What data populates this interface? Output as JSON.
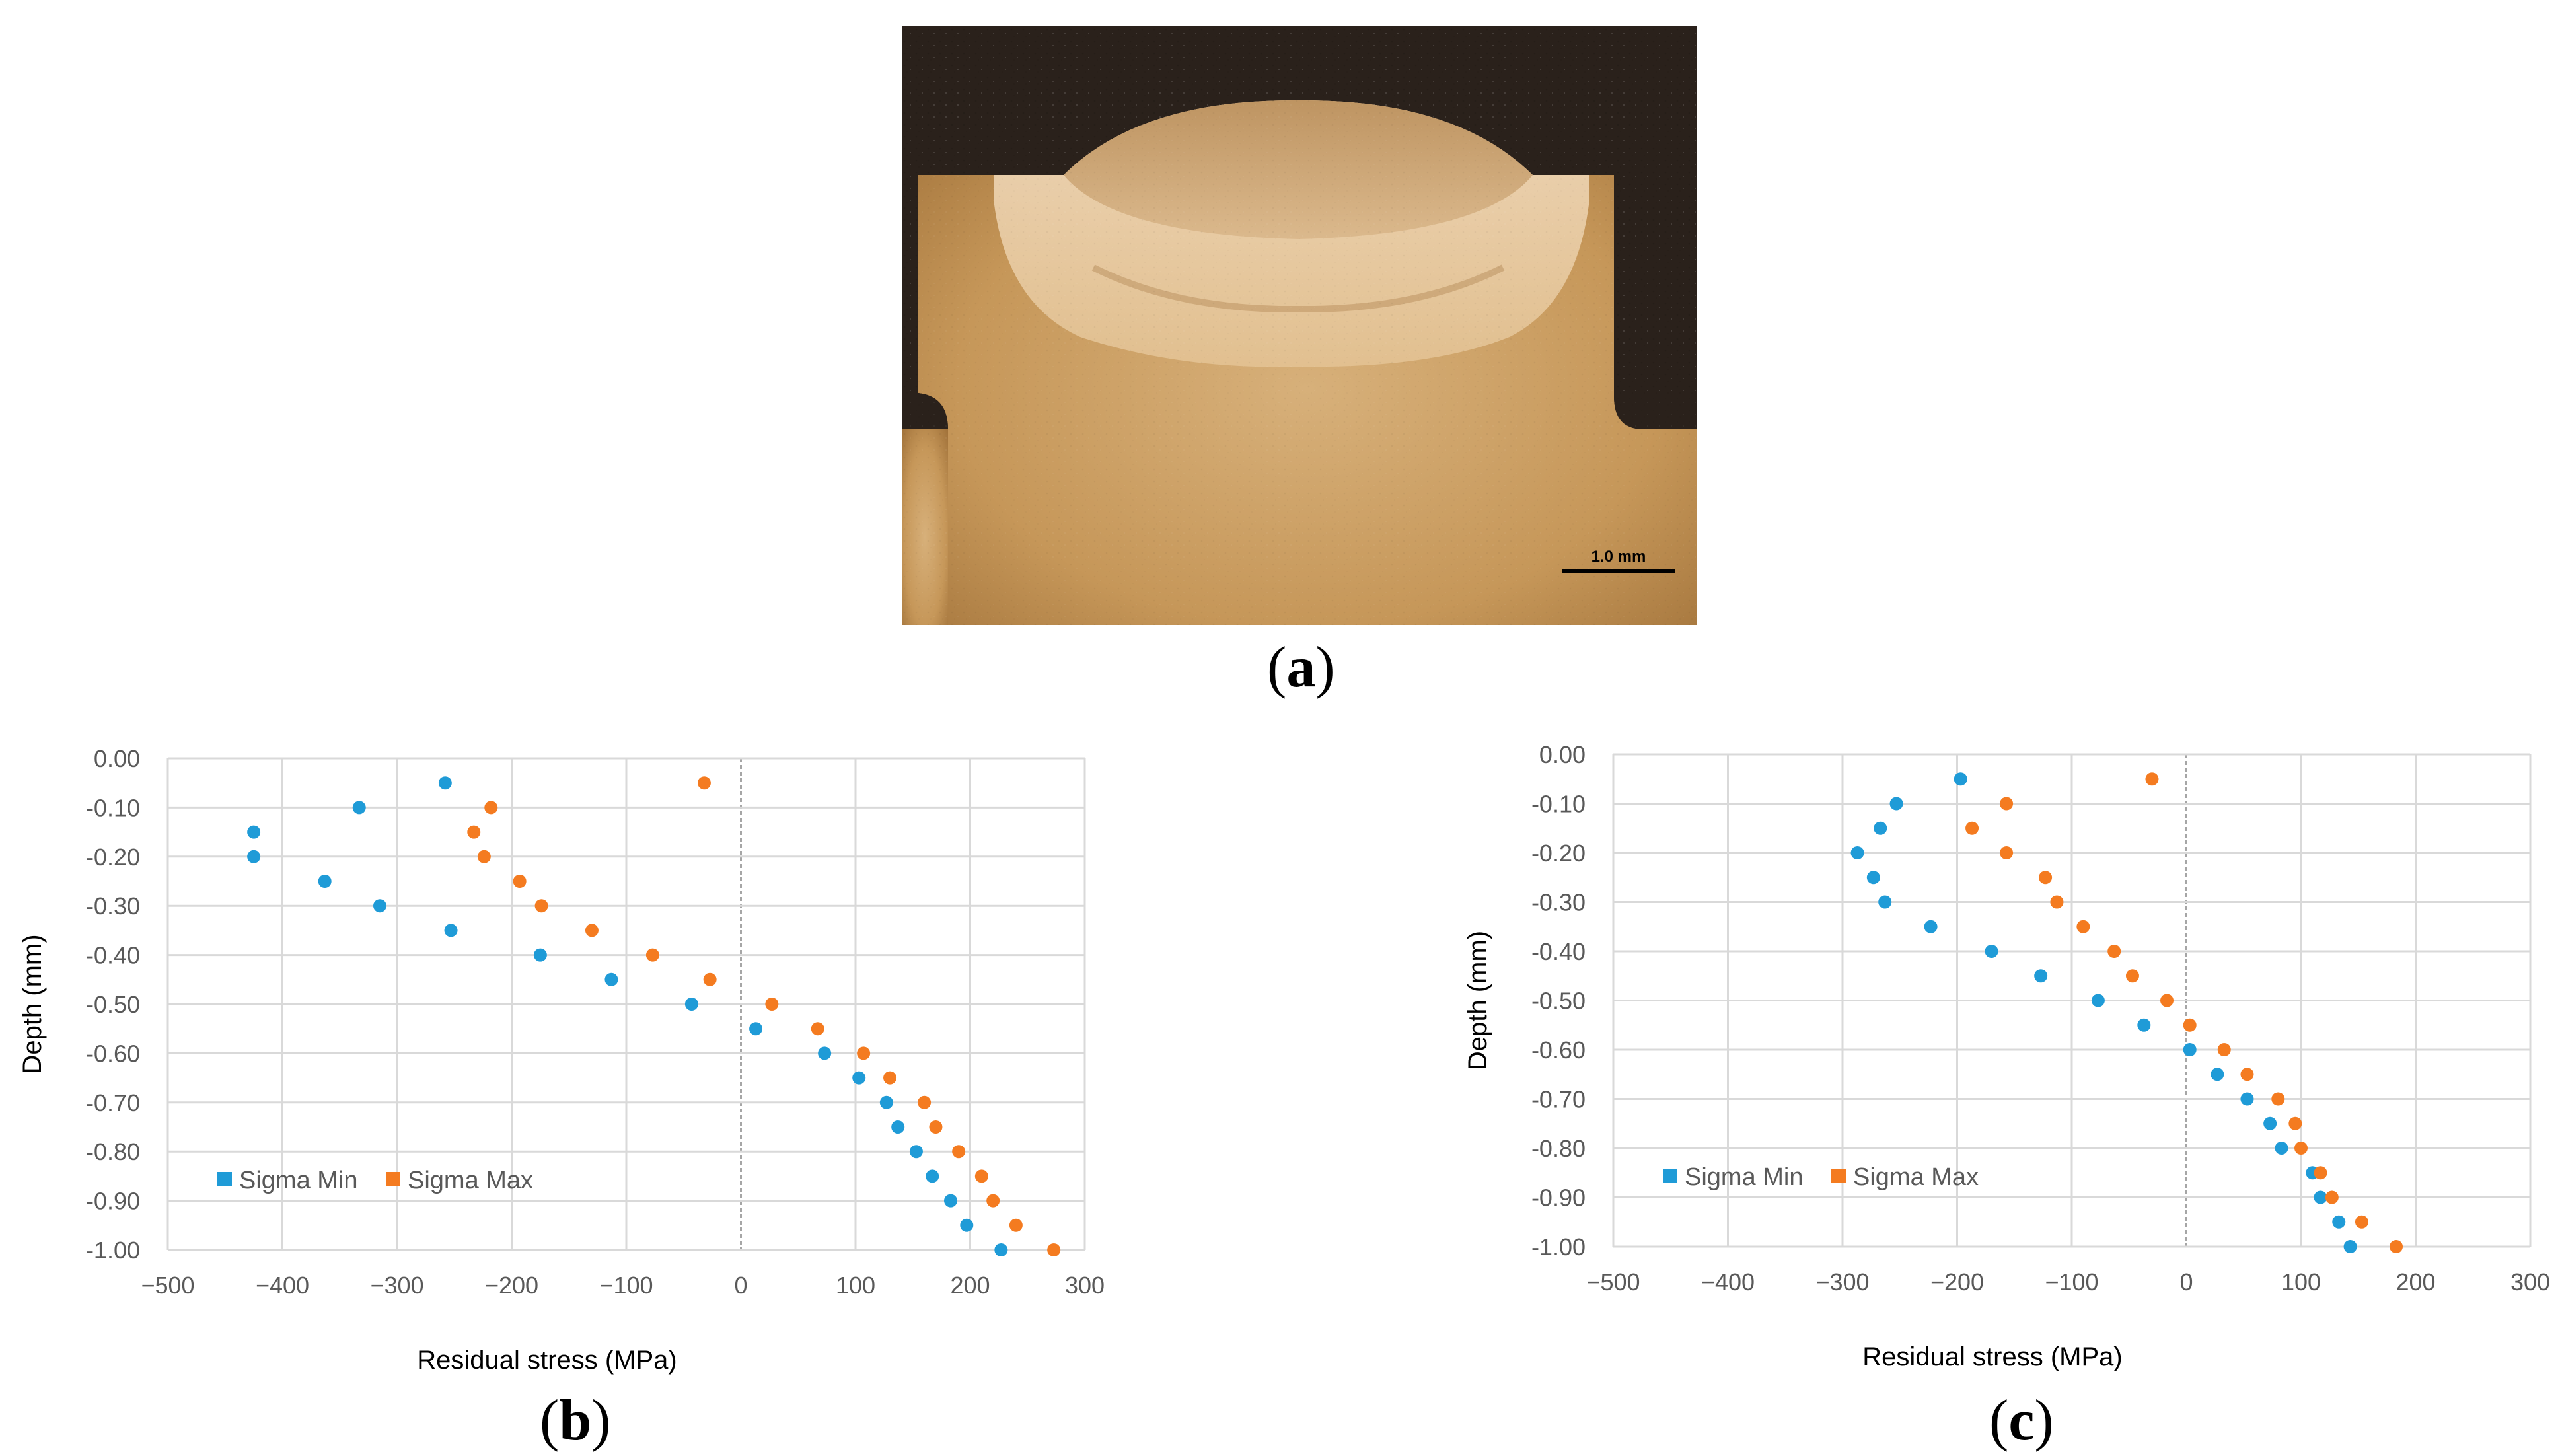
{
  "figure": {
    "panel_labels": [
      "a",
      "b",
      "c"
    ],
    "scale_bar_label": "1.0 mm",
    "colors": {
      "sigma_min": "#1f9bd7",
      "sigma_max": "#f47b20",
      "grid": "#d9d9d9",
      "axis_text": "#595959"
    }
  },
  "chart_data": [
    {
      "type": "scatter",
      "title": "",
      "xlabel": "Residual stress (MPa)",
      "ylabel": "Depth (mm)",
      "xlim": [
        -500,
        300
      ],
      "ylim": [
        -1.0,
        0.0
      ],
      "xticks": [
        "−500",
        "−400",
        "−300",
        "−200",
        "−100",
        "0",
        "100",
        "200",
        "300"
      ],
      "yticks": [
        "0.00",
        "-0.10",
        "-0.20",
        "-0.30",
        "-0.40",
        "-0.50",
        "-0.60",
        "-0.70",
        "-0.80",
        "-0.90",
        "-1.00"
      ],
      "grid": true,
      "legend": "bottom-left",
      "series": [
        {
          "name": "Sigma Min",
          "color": "#1f9bd7",
          "points": [
            [
              -258,
              -0.05
            ],
            [
              -333,
              -0.1
            ],
            [
              -425,
              -0.15
            ],
            [
              -425,
              -0.2
            ],
            [
              -363,
              -0.25
            ],
            [
              -315,
              -0.3
            ],
            [
              -253,
              -0.35
            ],
            [
              -175,
              -0.4
            ],
            [
              -113,
              -0.45
            ],
            [
              -43,
              -0.5
            ],
            [
              13,
              -0.55
            ],
            [
              73,
              -0.6
            ],
            [
              103,
              -0.65
            ],
            [
              127,
              -0.7
            ],
            [
              137,
              -0.75
            ],
            [
              153,
              -0.8
            ],
            [
              167,
              -0.85
            ],
            [
              183,
              -0.9
            ],
            [
              197,
              -0.95
            ],
            [
              227,
              -1.0
            ]
          ]
        },
        {
          "name": "Sigma Max",
          "color": "#f47b20",
          "points": [
            [
              -32,
              -0.05
            ],
            [
              -218,
              -0.1
            ],
            [
              -233,
              -0.15
            ],
            [
              -224,
              -0.2
            ],
            [
              -193,
              -0.25
            ],
            [
              -174,
              -0.3
            ],
            [
              -130,
              -0.35
            ],
            [
              -77,
              -0.4
            ],
            [
              -27,
              -0.45
            ],
            [
              27,
              -0.5
            ],
            [
              67,
              -0.55
            ],
            [
              107,
              -0.6
            ],
            [
              130,
              -0.65
            ],
            [
              160,
              -0.7
            ],
            [
              170,
              -0.75
            ],
            [
              190,
              -0.8
            ],
            [
              210,
              -0.85
            ],
            [
              220,
              -0.9
            ],
            [
              240,
              -0.95
            ],
            [
              273,
              -1.0
            ]
          ]
        }
      ]
    },
    {
      "type": "scatter",
      "title": "",
      "xlabel": "Residual stress (MPa)",
      "ylabel": "Depth (mm)",
      "xlim": [
        -500,
        300
      ],
      "ylim": [
        -1.0,
        0.0
      ],
      "xticks": [
        "−500",
        "−400",
        "−300",
        "−200",
        "−100",
        "0",
        "100",
        "200",
        "300"
      ],
      "yticks": [
        "0.00",
        "-0.10",
        "-0.20",
        "-0.30",
        "-0.40",
        "-0.50",
        "-0.60",
        "-0.70",
        "-0.80",
        "-0.90",
        "-1.00"
      ],
      "grid": true,
      "legend": "bottom-left",
      "series": [
        {
          "name": "Sigma Min",
          "color": "#1f9bd7",
          "points": [
            [
              -197,
              -0.05
            ],
            [
              -253,
              -0.1
            ],
            [
              -267,
              -0.15
            ],
            [
              -287,
              -0.2
            ],
            [
              -273,
              -0.25
            ],
            [
              -263,
              -0.3
            ],
            [
              -223,
              -0.35
            ],
            [
              -170,
              -0.4
            ],
            [
              -127,
              -0.45
            ],
            [
              -77,
              -0.5
            ],
            [
              -37,
              -0.55
            ],
            [
              3,
              -0.6
            ],
            [
              27,
              -0.65
            ],
            [
              53,
              -0.7
            ],
            [
              73,
              -0.75
            ],
            [
              83,
              -0.8
            ],
            [
              110,
              -0.85
            ],
            [
              117,
              -0.9
            ],
            [
              133,
              -0.95
            ],
            [
              143,
              -1.0
            ]
          ]
        },
        {
          "name": "Sigma Max",
          "color": "#f47b20",
          "points": [
            [
              -30,
              -0.05
            ],
            [
              -157,
              -0.1
            ],
            [
              -187,
              -0.15
            ],
            [
              -157,
              -0.2
            ],
            [
              -123,
              -0.25
            ],
            [
              -113,
              -0.3
            ],
            [
              -90,
              -0.35
            ],
            [
              -63,
              -0.4
            ],
            [
              -47,
              -0.45
            ],
            [
              -17,
              -0.5
            ],
            [
              3,
              -0.55
            ],
            [
              33,
              -0.6
            ],
            [
              53,
              -0.65
            ],
            [
              80,
              -0.7
            ],
            [
              95,
              -0.75
            ],
            [
              100,
              -0.8
            ],
            [
              117,
              -0.85
            ],
            [
              127,
              -0.9
            ],
            [
              153,
              -0.95
            ],
            [
              183,
              -1.0
            ]
          ]
        }
      ]
    }
  ]
}
